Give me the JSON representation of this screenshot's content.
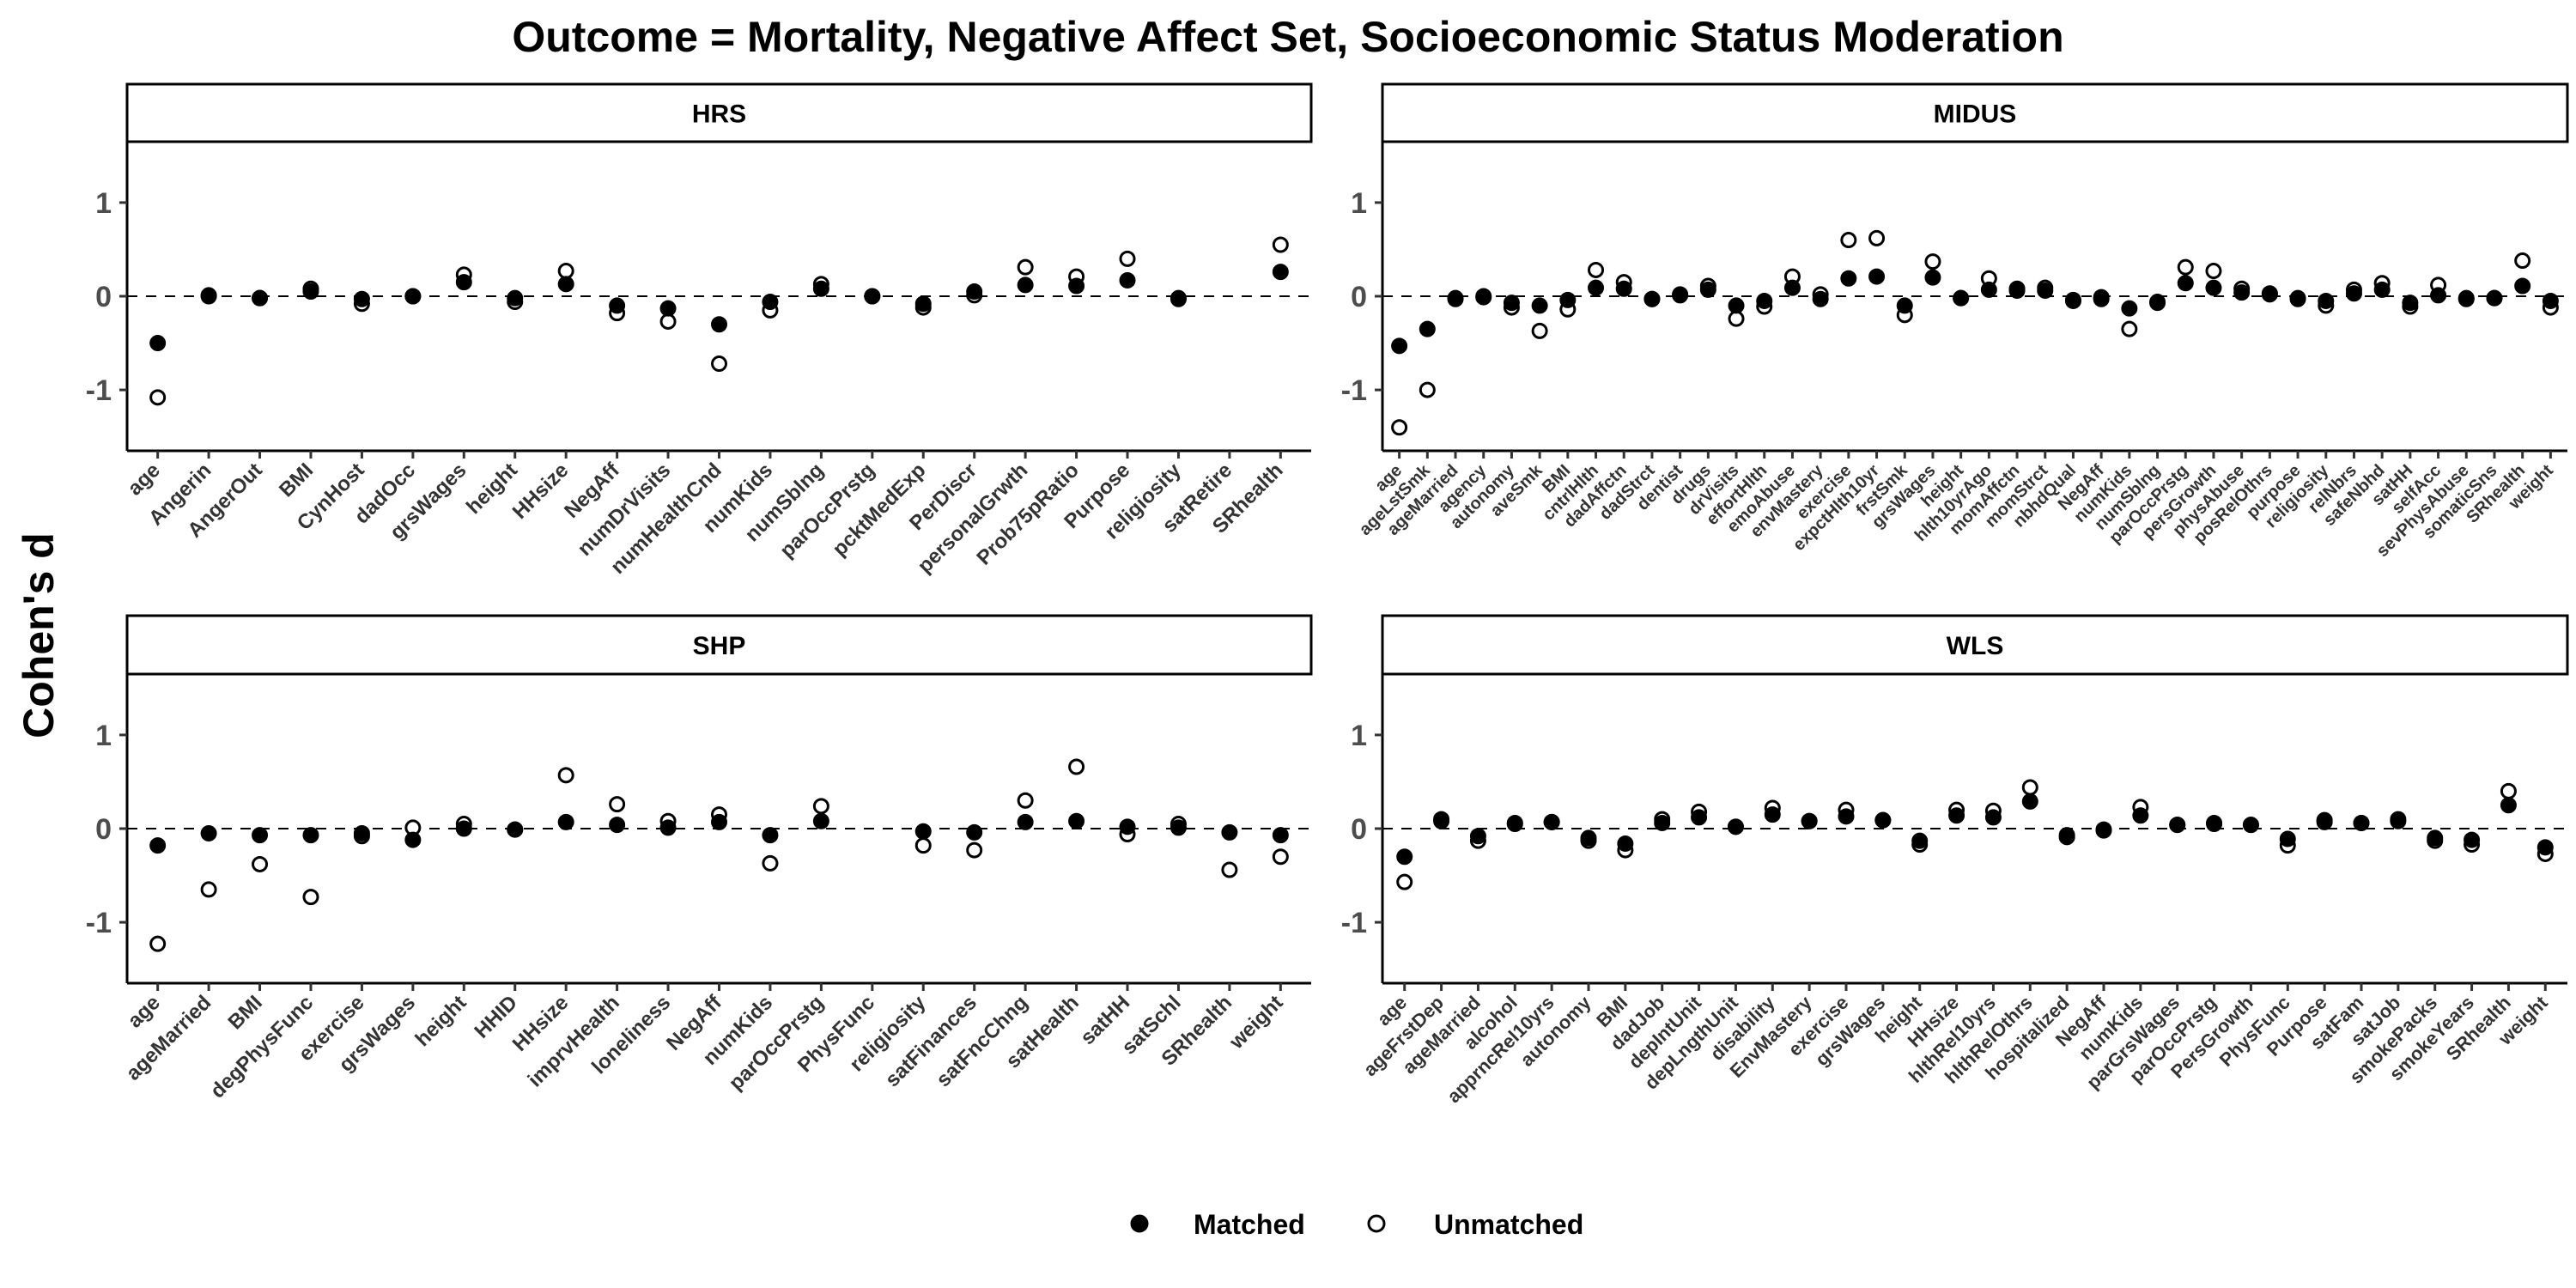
{
  "chart_data": {
    "type": "scatter",
    "title": "Outcome = Mortality, Negative Affect Set, Socioeconomic Status Moderation",
    "ylabel": "Cohen's d",
    "xlabel": "",
    "ylim": [
      -1.65,
      1.65
    ],
    "yticks": [
      -1,
      0,
      1
    ],
    "reference_line": 0,
    "grid": false,
    "legend": {
      "position": "bottom",
      "entries": [
        {
          "name": "Matched",
          "marker": "filled-circle",
          "color": "#000000"
        },
        {
          "name": "Unmatched",
          "marker": "open-circle",
          "color": "#000000"
        }
      ]
    },
    "panels": [
      {
        "name": "HRS",
        "categories": [
          "age",
          "Angerin",
          "AngerOut",
          "BMI",
          "CynHost",
          "dadOcc",
          "grsWages",
          "height",
          "HHsize",
          "NegAff",
          "numDrVisits",
          "numHealthCnd",
          "numKids",
          "numSblng",
          "parOccPrstg",
          "pcktMedExp",
          "PerDiscr",
          "personalGrwth",
          "Prob75pRatio",
          "Purpose",
          "religiosity",
          "satRetire",
          "SRhealth"
        ],
        "series": [
          {
            "name": "Matched",
            "values": [
              -0.5,
              0.0,
              -0.02,
              0.05,
              -0.03,
              0.0,
              0.15,
              -0.02,
              0.13,
              -0.1,
              -0.13,
              -0.3,
              -0.06,
              0.08,
              0.0,
              -0.08,
              0.05,
              0.12,
              0.11,
              0.17,
              -0.02,
              null,
              0.26
            ]
          },
          {
            "name": "Unmatched",
            "values": [
              -1.08,
              0.01,
              -0.02,
              0.08,
              -0.08,
              0.0,
              0.23,
              -0.06,
              0.27,
              -0.18,
              -0.27,
              -0.72,
              -0.15,
              0.13,
              0.0,
              -0.12,
              0.01,
              0.31,
              0.21,
              0.4,
              -0.03,
              null,
              0.55
            ]
          }
        ]
      },
      {
        "name": "MIDUS",
        "categories": [
          "age",
          "ageLstSmk",
          "ageMarried",
          "agency",
          "autonomy",
          "aveSmk",
          "BMI",
          "cntrlHlth",
          "dadAffctn",
          "dadStrct",
          "dentist",
          "drugs",
          "drVisits",
          "effortHlth",
          "emoAbuse",
          "envMastery",
          "exercise",
          "expctHlth10yr",
          "frstSmk",
          "grsWages",
          "height",
          "hlth10yrAgo",
          "momAffctn",
          "momStrct",
          "nbhdQual",
          "NegAff",
          "numKids",
          "numSblng",
          "parOccPrstg",
          "persGrowth",
          "physAbuse",
          "posRelOthrs",
          "purpose",
          "religiosity",
          "relNbrs",
          "safeNbhd",
          "satHH",
          "selfAcc",
          "sevPhysAbuse",
          "somaticSns",
          "SRhealth",
          "weight"
        ],
        "series": [
          {
            "name": "Matched",
            "values": [
              -0.53,
              -0.35,
              -0.03,
              -0.01,
              -0.07,
              -0.1,
              -0.04,
              0.09,
              0.08,
              -0.03,
              0.01,
              0.07,
              -0.1,
              -0.05,
              0.09,
              -0.03,
              0.19,
              0.21,
              -0.1,
              0.2,
              -0.02,
              0.07,
              0.06,
              0.06,
              -0.05,
              -0.03,
              -0.13,
              -0.07,
              0.14,
              0.09,
              0.04,
              0.02,
              -0.03,
              -0.05,
              0.03,
              0.07,
              -0.07,
              0.01,
              -0.02,
              -0.02,
              0.11,
              -0.05
            ]
          },
          {
            "name": "Unmatched",
            "values": [
              -1.4,
              -1.0,
              -0.02,
              0.0,
              -0.12,
              -0.37,
              -0.14,
              0.28,
              0.15,
              -0.03,
              0.02,
              0.11,
              -0.24,
              -0.11,
              0.21,
              0.02,
              0.6,
              0.62,
              -0.2,
              0.37,
              -0.02,
              0.19,
              0.08,
              0.09,
              -0.04,
              -0.01,
              -0.35,
              -0.06,
              0.31,
              0.27,
              0.08,
              0.03,
              -0.02,
              -0.1,
              0.07,
              0.14,
              -0.11,
              0.12,
              -0.03,
              -0.02,
              0.38,
              -0.12
            ]
          }
        ]
      },
      {
        "name": "SHP",
        "categories": [
          "age",
          "ageMarried",
          "BMI",
          "degPhysFunc",
          "exercise",
          "grsWages",
          "height",
          "HHID",
          "HHsize",
          "imprvHealth",
          "loneliness",
          "NegAff",
          "numKids",
          "parOccPrstg",
          "PhysFunc",
          "religiosity",
          "satFinances",
          "satFncChng",
          "satHealth",
          "satHH",
          "satSchl",
          "SRhealth",
          "weight"
        ],
        "series": [
          {
            "name": "Matched",
            "values": [
              -0.18,
              -0.05,
              -0.07,
              -0.07,
              -0.05,
              -0.12,
              0.0,
              -0.01,
              0.07,
              0.04,
              0.01,
              0.07,
              -0.07,
              0.08,
              null,
              -0.03,
              -0.04,
              0.07,
              0.08,
              0.02,
              0.01,
              -0.04,
              -0.07
            ]
          },
          {
            "name": "Unmatched",
            "values": [
              -1.23,
              -0.65,
              -0.38,
              -0.73,
              -0.08,
              0.01,
              0.05,
              -0.01,
              0.57,
              0.26,
              0.08,
              0.15,
              -0.37,
              0.24,
              null,
              -0.18,
              -0.23,
              0.3,
              0.66,
              -0.06,
              0.05,
              -0.44,
              -0.3
            ]
          }
        ]
      },
      {
        "name": "WLS",
        "categories": [
          "age",
          "ageFrstDep",
          "ageMarried",
          "alcohol",
          "apprncRel10yrs",
          "autonomy",
          "BMI",
          "dadJob",
          "depIntUnit",
          "depLngthUnit",
          "disability",
          "EnvMastery",
          "exercise",
          "grsWages",
          "height",
          "HHsize",
          "hlthRel10yrs",
          "hlthRelOthrs",
          "hospitalized",
          "NegAff",
          "numKids",
          "parGrsWages",
          "parOccPrstg",
          "PersGrowth",
          "PhysFunc",
          "Purpose",
          "satFam",
          "satJob",
          "smokePacks",
          "smokeYears",
          "SRhealth",
          "weight"
        ],
        "series": [
          {
            "name": "Matched",
            "values": [
              -0.3,
              0.08,
              -0.08,
              0.05,
              0.07,
              -0.1,
              -0.16,
              0.06,
              0.12,
              0.02,
              0.15,
              0.08,
              0.13,
              0.09,
              -0.13,
              0.14,
              0.12,
              0.29,
              -0.07,
              -0.02,
              0.14,
              0.04,
              0.05,
              0.04,
              -0.11,
              0.07,
              0.06,
              0.08,
              -0.1,
              -0.12,
              0.25,
              -0.2
            ]
          },
          {
            "name": "Unmatched",
            "values": [
              -0.57,
              0.1,
              -0.13,
              0.06,
              0.07,
              -0.13,
              -0.23,
              0.1,
              0.18,
              0.02,
              0.22,
              0.08,
              0.2,
              0.09,
              -0.17,
              0.2,
              0.19,
              0.44,
              -0.09,
              -0.01,
              0.23,
              0.04,
              0.06,
              0.04,
              -0.18,
              0.09,
              0.06,
              0.1,
              -0.13,
              -0.17,
              0.4,
              -0.27
            ]
          }
        ]
      }
    ]
  }
}
